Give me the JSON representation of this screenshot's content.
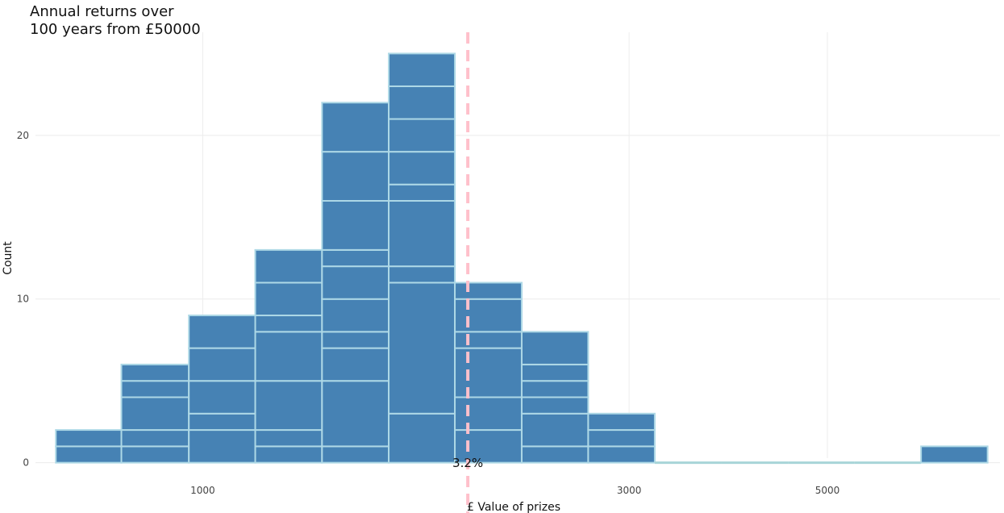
{
  "chart_data": {
    "type": "bar",
    "title": "Annual returns over\n100 years from £50000",
    "xlabel": "£ Value of prizes",
    "ylabel": "Count",
    "x_scale": "log",
    "xlim": [
      650,
      7800
    ],
    "ylim": [
      -1.2,
      26.3
    ],
    "x_ticks": [
      1000,
      3000,
      5000
    ],
    "y_ticks": [
      0,
      10,
      20
    ],
    "grid": true,
    "legend": "none",
    "bin_edges": [
      685,
      811,
      965,
      1145,
      1360,
      1615,
      1915,
      2275,
      2700,
      3205,
      3805,
      4520,
      5365,
      6365,
      7555
    ],
    "counts": [
      2,
      6,
      9,
      13,
      22,
      25,
      11,
      8,
      3,
      0,
      0,
      0,
      0,
      1
    ],
    "stack_segments": [
      [
        1,
        1
      ],
      [
        1,
        1,
        2,
        1,
        1
      ],
      [
        2,
        1,
        2,
        2,
        2
      ],
      [
        1,
        1,
        3,
        3,
        1,
        2,
        2
      ],
      [
        1,
        4,
        2,
        1,
        2,
        2,
        1,
        3,
        3,
        3
      ],
      [
        3,
        8,
        1,
        4,
        1,
        2,
        2,
        2,
        2
      ],
      [
        2,
        2,
        3,
        1,
        2,
        1
      ],
      [
        1,
        2,
        1,
        1,
        1,
        2
      ],
      [
        1,
        1,
        1
      ],
      [],
      [],
      [],
      [],
      [
        1
      ]
    ],
    "bar_color": "#4682b4",
    "edge_color": "#add8e6",
    "reference_line": {
      "x": 1980,
      "label": "3.2%",
      "color": "#ffc0cb",
      "style": "dashed"
    }
  }
}
